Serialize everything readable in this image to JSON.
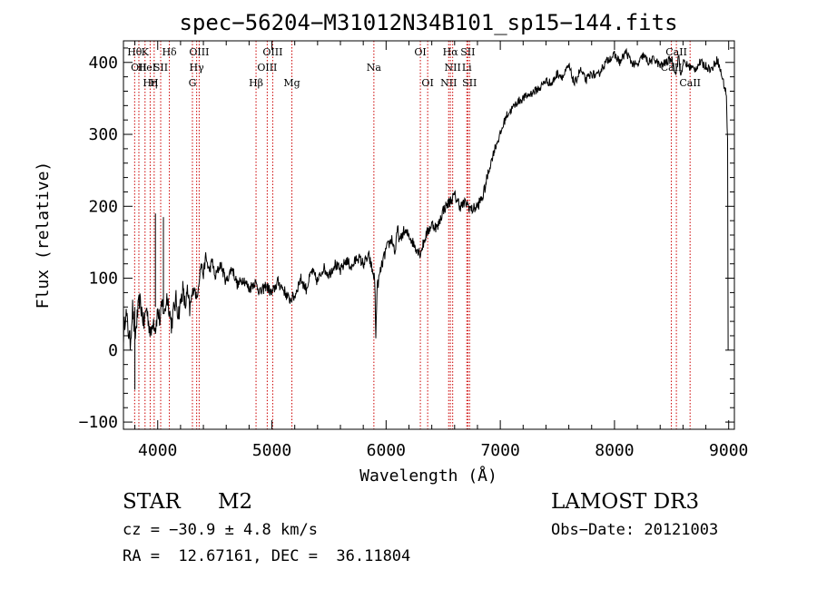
{
  "chart_data": {
    "type": "line",
    "title": "spec−56204−M31012N34B101_sp15−144.fits",
    "xlabel": "Wavelength (Å)",
    "ylabel": "Flux (relative)",
    "xlim": [
      3700,
      9050
    ],
    "ylim": [
      -110,
      430
    ],
    "xticks": [
      4000,
      5000,
      6000,
      7000,
      8000,
      9000
    ],
    "yticks": [
      -100,
      0,
      100,
      200,
      300,
      400
    ],
    "ytick_labels": [
      "−100",
      "0",
      "100",
      "200",
      "300",
      "400"
    ],
    "spectrum_anchor_points": [
      [
        3700,
        20
      ],
      [
        3720,
        55
      ],
      [
        3740,
        30
      ],
      [
        3760,
        10
      ],
      [
        3780,
        60
      ],
      [
        3800,
        15
      ],
      [
        3820,
        45
      ],
      [
        3840,
        70
      ],
      [
        3860,
        55
      ],
      [
        3880,
        35
      ],
      [
        3900,
        60
      ],
      [
        3920,
        40
      ],
      [
        3940,
        20
      ],
      [
        3960,
        45
      ],
      [
        3980,
        30
      ],
      [
        4000,
        55
      ],
      [
        4020,
        40
      ],
      [
        4040,
        65
      ],
      [
        4060,
        50
      ],
      [
        4080,
        75
      ],
      [
        4100,
        60
      ],
      [
        4120,
        35
      ],
      [
        4140,
        55
      ],
      [
        4160,
        70
      ],
      [
        4180,
        50
      ],
      [
        4200,
        65
      ],
      [
        4220,
        85
      ],
      [
        4240,
        60
      ],
      [
        4260,
        80
      ],
      [
        4280,
        55
      ],
      [
        4300,
        75
      ],
      [
        4320,
        90
      ],
      [
        4340,
        70
      ],
      [
        4360,
        95
      ],
      [
        4380,
        120
      ],
      [
        4400,
        105
      ],
      [
        4420,
        130
      ],
      [
        4450,
        110
      ],
      [
        4480,
        125
      ],
      [
        4500,
        100
      ],
      [
        4550,
        120
      ],
      [
        4600,
        95
      ],
      [
        4650,
        115
      ],
      [
        4700,
        90
      ],
      [
        4750,
        100
      ],
      [
        4800,
        85
      ],
      [
        4850,
        95
      ],
      [
        4900,
        80
      ],
      [
        4950,
        90
      ],
      [
        5000,
        78
      ],
      [
        5050,
        95
      ],
      [
        5100,
        85
      ],
      [
        5150,
        70
      ],
      [
        5200,
        75
      ],
      [
        5250,
        100
      ],
      [
        5300,
        85
      ],
      [
        5350,
        110
      ],
      [
        5400,
        95
      ],
      [
        5450,
        115
      ],
      [
        5500,
        105
      ],
      [
        5550,
        120
      ],
      [
        5600,
        110
      ],
      [
        5650,
        125
      ],
      [
        5700,
        115
      ],
      [
        5750,
        130
      ],
      [
        5800,
        120
      ],
      [
        5850,
        130
      ],
      [
        5880,
        110
      ],
      [
        5900,
        100
      ],
      [
        5910,
        15
      ],
      [
        5920,
        85
      ],
      [
        5950,
        110
      ],
      [
        6000,
        140
      ],
      [
        6050,
        155
      ],
      [
        6080,
        135
      ],
      [
        6100,
        170
      ],
      [
        6120,
        150
      ],
      [
        6150,
        165
      ],
      [
        6200,
        160
      ],
      [
        6250,
        145
      ],
      [
        6300,
        135
      ],
      [
        6350,
        160
      ],
      [
        6400,
        175
      ],
      [
        6450,
        170
      ],
      [
        6500,
        195
      ],
      [
        6550,
        205
      ],
      [
        6600,
        215
      ],
      [
        6650,
        200
      ],
      [
        6700,
        205
      ],
      [
        6750,
        195
      ],
      [
        6800,
        200
      ],
      [
        6850,
        215
      ],
      [
        6900,
        250
      ],
      [
        6950,
        280
      ],
      [
        7000,
        300
      ],
      [
        7050,
        325
      ],
      [
        7100,
        335
      ],
      [
        7150,
        345
      ],
      [
        7200,
        350
      ],
      [
        7250,
        355
      ],
      [
        7300,
        360
      ],
      [
        7350,
        365
      ],
      [
        7400,
        375
      ],
      [
        7450,
        370
      ],
      [
        7500,
        385
      ],
      [
        7550,
        380
      ],
      [
        7600,
        395
      ],
      [
        7650,
        370
      ],
      [
        7700,
        390
      ],
      [
        7750,
        375
      ],
      [
        7800,
        385
      ],
      [
        7850,
        380
      ],
      [
        7900,
        395
      ],
      [
        7950,
        405
      ],
      [
        8000,
        410
      ],
      [
        8050,
        400
      ],
      [
        8100,
        415
      ],
      [
        8150,
        400
      ],
      [
        8200,
        395
      ],
      [
        8250,
        410
      ],
      [
        8300,
        400
      ],
      [
        8350,
        405
      ],
      [
        8400,
        395
      ],
      [
        8450,
        400
      ],
      [
        8500,
        405
      ],
      [
        8540,
        385
      ],
      [
        8560,
        410
      ],
      [
        8580,
        380
      ],
      [
        8600,
        400
      ],
      [
        8650,
        395
      ],
      [
        8700,
        390
      ],
      [
        8750,
        400
      ],
      [
        8800,
        395
      ],
      [
        8850,
        390
      ],
      [
        8900,
        405
      ],
      [
        8950,
        375
      ],
      [
        8980,
        355
      ],
      [
        8990,
        290
      ],
      [
        8995,
        0
      ]
    ],
    "spectrum_spikes": [
      {
        "x": 3800,
        "y": -55
      },
      {
        "x": 3980,
        "y": 190
      },
      {
        "x": 4050,
        "y": 185
      }
    ],
    "line_markers": [
      {
        "x": 3798,
        "labels": [
          {
            "text": "Hθ",
            "row": 1
          }
        ]
      },
      {
        "x": 3835,
        "labels": [
          {
            "text": "OII",
            "row": 2
          }
        ]
      },
      {
        "x": 3889,
        "labels": [
          {
            "text": "K",
            "row": 1
          },
          {
            "text": "He",
            "row": 2
          }
        ]
      },
      {
        "x": 3934,
        "labels": [
          {
            "text": "Hη",
            "row": 3
          }
        ]
      },
      {
        "x": 3969,
        "labels": [
          {
            "text": "I",
            "row": 2
          },
          {
            "text": "H",
            "row": 3
          }
        ]
      },
      {
        "x": 4026,
        "labels": [
          {
            "text": "SII",
            "row": 2
          }
        ]
      },
      {
        "x": 4102,
        "labels": [
          {
            "text": "Hδ",
            "row": 1
          }
        ]
      },
      {
        "x": 4304,
        "labels": [
          {
            "text": "G",
            "row": 3
          }
        ]
      },
      {
        "x": 4341,
        "labels": [
          {
            "text": "Hγ",
            "row": 2
          }
        ]
      },
      {
        "x": 4363,
        "labels": [
          {
            "text": "OIII",
            "row": 1
          }
        ]
      },
      {
        "x": 4861,
        "labels": [
          {
            "text": "Hβ",
            "row": 3
          }
        ]
      },
      {
        "x": 4959,
        "labels": [
          {
            "text": "OIII",
            "row": 2
          }
        ]
      },
      {
        "x": 5007,
        "labels": [
          {
            "text": "OIII",
            "row": 1
          }
        ]
      },
      {
        "x": 5175,
        "labels": [
          {
            "text": "Mg",
            "row": 3
          }
        ]
      },
      {
        "x": 5893,
        "labels": [
          {
            "text": "Na",
            "row": 2
          }
        ]
      },
      {
        "x": 6300,
        "labels": [
          {
            "text": "OI",
            "row": 1
          }
        ]
      },
      {
        "x": 6364,
        "labels": [
          {
            "text": "OI",
            "row": 3
          }
        ]
      },
      {
        "x": 6548,
        "labels": [
          {
            "text": "NII",
            "row": 3
          }
        ]
      },
      {
        "x": 6563,
        "labels": [
          {
            "text": "Hα",
            "row": 1
          }
        ]
      },
      {
        "x": 6583,
        "labels": [
          {
            "text": "NII",
            "row": 2
          }
        ]
      },
      {
        "x": 6707,
        "labels": [
          {
            "text": "Li",
            "row": 2
          }
        ]
      },
      {
        "x": 6716,
        "labels": [
          {
            "text": "SII",
            "row": 1
          }
        ]
      },
      {
        "x": 6731,
        "labels": [
          {
            "text": "SII",
            "row": 3
          }
        ]
      },
      {
        "x": 8498,
        "labels": [
          {
            "text": "CaII",
            "row": 2
          }
        ]
      },
      {
        "x": 8542,
        "labels": [
          {
            "text": "CaII",
            "row": 1
          }
        ]
      },
      {
        "x": 8662,
        "labels": [
          {
            "text": "CaII",
            "row": 3
          }
        ]
      }
    ],
    "colors": {
      "spectrum": "#000000",
      "marker": "#cc0000",
      "axes": "#000000"
    }
  },
  "info": {
    "object_class": "STAR",
    "subclass": "M2",
    "survey": "LAMOST DR3",
    "redshift": "cz = −30.9 ± 4.8 km/s",
    "obs_date": "Obs−Date: 20121003",
    "coordinates": "RA =  12.67161, DEC =  36.11804"
  }
}
